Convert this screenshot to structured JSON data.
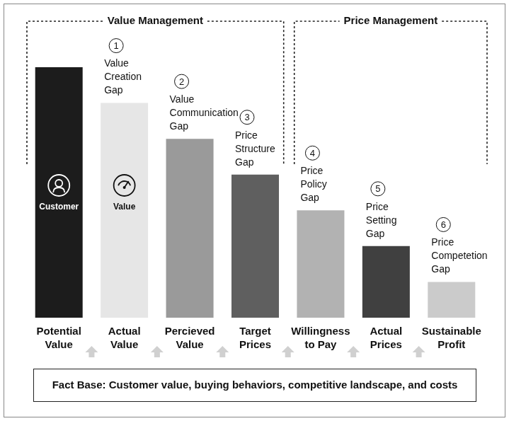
{
  "chart_data": {
    "type": "bar",
    "categories": [
      "Potential Value",
      "Actual Value",
      "Percieved Value",
      "Target Prices",
      "Willingness to Pay",
      "Actual Prices",
      "Sustainable Profit"
    ],
    "values": [
      7,
      6,
      5,
      4,
      3,
      2,
      1
    ],
    "colors": [
      "#1c1c1c",
      "#e6e6e6",
      "#9a9a9a",
      "#5f5f5f",
      "#b2b2b2",
      "#404040",
      "#cbcbcb"
    ],
    "ylim": [
      0,
      7
    ],
    "grid": false,
    "tick_labels": "x",
    "annotations": {
      "groups": [
        {
          "label": "Value Management",
          "from": "Potential Value",
          "to": "Target Prices"
        },
        {
          "label": "Price Management",
          "from": "Willingness to Pay",
          "to": "Sustainable Profit"
        }
      ],
      "gaps": [
        {
          "number": 1,
          "label": "Value Creation Gap",
          "category": "Actual Value"
        },
        {
          "number": 2,
          "label": "Value Communication Gap",
          "category": "Percieved Value"
        },
        {
          "number": 3,
          "label": "Price Structure Gap",
          "category": "Target Prices"
        },
        {
          "number": 4,
          "label": "Price Policy Gap",
          "category": "Willingness to Pay"
        },
        {
          "number": 5,
          "label": "Price Setting Gap",
          "category": "Actual Prices"
        },
        {
          "number": 6,
          "label": "Price Competetion Gap",
          "category": "Sustainable Profit"
        }
      ],
      "bar_labels": [
        {
          "category": "Potential Value",
          "label": "Customer"
        },
        {
          "category": "Actual Value",
          "label": "Value"
        }
      ],
      "footer": "Fact Base: Customer value, buying behaviors, competitive landscape, and costs"
    }
  }
}
